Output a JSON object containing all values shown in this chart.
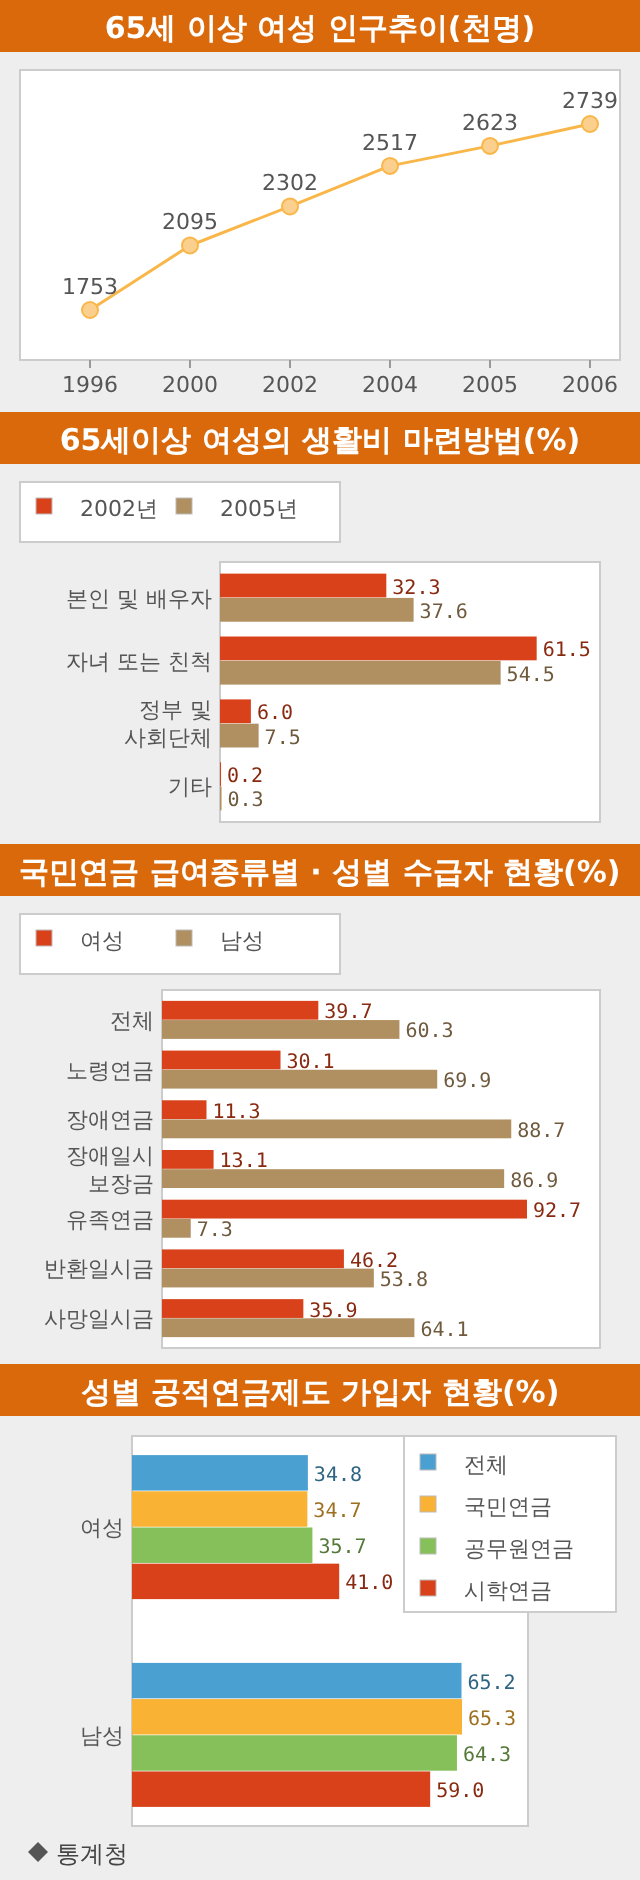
{
  "chart_data": [
    {
      "type": "line",
      "title": "65세 이상 여성 인구추이(천명)",
      "categories": [
        "1996",
        "2000",
        "2002",
        "2004",
        "2005",
        "2006"
      ],
      "series": [
        {
          "color": "#f9b74a",
          "values": [
            1753,
            2095,
            2302,
            2517,
            2623,
            2739
          ]
        }
      ],
      "data_labels": true,
      "marker": "circle",
      "legend": false
    },
    {
      "type": "bar",
      "orientation": "horizontal",
      "title": "65세이상 여성의 생활비 마련방법(%)",
      "categories": [
        "본인 및 배우자",
        "자녀 또는 친척",
        "정부 및\n사회단체",
        "기타"
      ],
      "series": [
        {
          "name": "2002년",
          "color": "#d9411a",
          "values": [
            32.3,
            61.5,
            6.0,
            0.2
          ],
          "value_labels": [
            "32.3",
            "61.5",
            "6.0",
            "0.2"
          ]
        },
        {
          "name": "2005년",
          "color": "#b08f61",
          "values": [
            37.6,
            54.5,
            7.5,
            0.3
          ],
          "value_labels": [
            "37.6",
            "54.5",
            "7.5",
            "0.3"
          ]
        }
      ],
      "legend": "top left"
    },
    {
      "type": "bar",
      "orientation": "horizontal",
      "title": "국민연금 급여종류별 · 성별 수급자 현황(%)",
      "categories": [
        "전체",
        "노령연금",
        "장애연금",
        "장애일시\n보장금",
        "유족연금",
        "반환일시금",
        "사망일시금"
      ],
      "series": [
        {
          "name": "여성",
          "color": "#d9411a",
          "values": [
            39.7,
            30.1,
            11.3,
            13.1,
            92.7,
            46.2,
            35.9
          ],
          "value_labels": [
            "39.7",
            "30.1",
            "11.3",
            "13.1",
            "92.7",
            "46.2",
            "35.9"
          ]
        },
        {
          "name": "남성",
          "color": "#b08f61",
          "values": [
            60.3,
            69.9,
            88.7,
            86.9,
            7.3,
            53.8,
            64.1
          ],
          "value_labels": [
            "60.3",
            "69.9",
            "88.7",
            "86.9",
            "7.3",
            "53.8",
            "64.1"
          ]
        }
      ],
      "legend": "top left"
    },
    {
      "type": "bar",
      "orientation": "horizontal",
      "title": "성별 공적연금제도 가입자 현황(%)",
      "categories": [
        "여성",
        "남성"
      ],
      "series": [
        {
          "name": "전체",
          "color": "#4aa0d0",
          "values": [
            34.8,
            65.2
          ],
          "value_labels": [
            "34.8",
            "65.2"
          ]
        },
        {
          "name": "국민연금",
          "color": "#f9b233",
          "values": [
            34.7,
            65.3
          ],
          "value_labels": [
            "34.7",
            "65.3"
          ]
        },
        {
          "name": "공무원연금",
          "color": "#86c05a",
          "values": [
            35.7,
            64.3
          ],
          "value_labels": [
            "35.7",
            "64.3"
          ]
        },
        {
          "name": "시학연금",
          "color": "#d9411a",
          "values": [
            41.0,
            59.0
          ],
          "value_labels": [
            "41.0",
            "59.0"
          ]
        }
      ],
      "legend": "top right",
      "annotations": [
        "통계청"
      ]
    }
  ]
}
